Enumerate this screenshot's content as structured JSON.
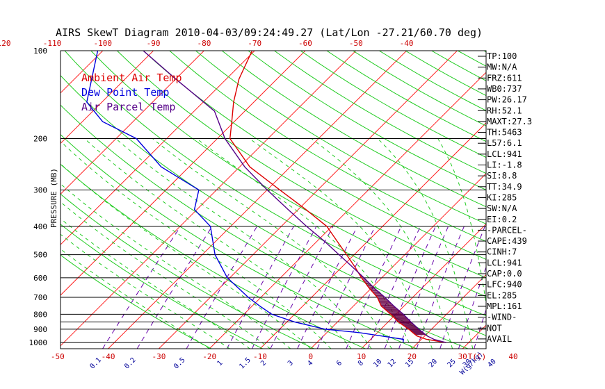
{
  "chart_data": {
    "type": "line",
    "title": "AIRS SkewT Diagram 2010-04-03/09:24:49.27 (Lat/Lon -27.21/60.70 deg)",
    "ylabel": "PRESSURE (MB)",
    "xlabel_bottom_unit": "T(C)",
    "mixing_ratio_unit": "W(g/kg)",
    "pressure_ticks": [
      100,
      200,
      300,
      400,
      500,
      600,
      700,
      800,
      900,
      1000
    ],
    "pressure_lines": [
      200,
      300,
      400,
      500,
      600,
      700,
      800,
      850,
      900,
      1000
    ],
    "top_temperature_ticks": [
      -120,
      -110,
      -100,
      -90,
      -80,
      -70,
      -60,
      -50,
      -40
    ],
    "bottom_temperature_ticks": [
      -50,
      -40,
      -30,
      -20,
      -10,
      0,
      10,
      20,
      30,
      40
    ],
    "mixing_ratio_labels": [
      "0.1",
      "0.2",
      "0.5",
      "1",
      "1.5",
      "2",
      "3",
      "4",
      "6",
      "8",
      "10",
      "12",
      "15",
      "20",
      "25",
      "30",
      "40"
    ],
    "legend": [
      {
        "label": "Ambient Air Temp",
        "color": "#dd0000"
      },
      {
        "label": "Dew Point Temp",
        "color": "#0000dd"
      },
      {
        "label": "Air Parcel Temp",
        "color": "#550088"
      }
    ],
    "series": [
      {
        "name": "Ambient Air Temp",
        "color": "#dd0000",
        "points": [
          [
            1000,
            25.5
          ],
          [
            975,
            21.0
          ],
          [
            950,
            18.5
          ],
          [
            925,
            17.0
          ],
          [
            900,
            15.5
          ],
          [
            850,
            12.0
          ],
          [
            800,
            9.0
          ],
          [
            750,
            5.5
          ],
          [
            700,
            3.0
          ],
          [
            650,
            -0.5
          ],
          [
            600,
            -4.0
          ],
          [
            550,
            -7.5
          ],
          [
            500,
            -11.5
          ],
          [
            450,
            -16.0
          ],
          [
            400,
            -21.0
          ],
          [
            350,
            -28.5
          ],
          [
            300,
            -37.5
          ],
          [
            250,
            -48.0
          ],
          [
            200,
            -57.5
          ],
          [
            175,
            -60.5
          ],
          [
            150,
            -64.0
          ],
          [
            125,
            -67.5
          ],
          [
            100,
            -70.5
          ]
        ]
      },
      {
        "name": "Dew Point Temp",
        "color": "#0000dd",
        "points": [
          [
            1000,
            17.0
          ],
          [
            975,
            16.5
          ],
          [
            950,
            11.5
          ],
          [
            925,
            6.5
          ],
          [
            900,
            -1.0
          ],
          [
            850,
            -8.5
          ],
          [
            800,
            -14.5
          ],
          [
            750,
            -18.5
          ],
          [
            700,
            -22.5
          ],
          [
            600,
            -30.5
          ],
          [
            500,
            -37.5
          ],
          [
            400,
            -44.0
          ],
          [
            350,
            -50.5
          ],
          [
            300,
            -53.5
          ],
          [
            250,
            -65.5
          ],
          [
            200,
            -76.0
          ],
          [
            175,
            -86.0
          ],
          [
            150,
            -93.0
          ],
          [
            100,
            -101.0
          ]
        ]
      },
      {
        "name": "Air Parcel Temp",
        "color": "#550088",
        "points": [
          [
            1000,
            25.5
          ],
          [
            975,
            22.5
          ],
          [
            950,
            20.5
          ],
          [
            941,
            20.0
          ],
          [
            900,
            17.5
          ],
          [
            850,
            14.5
          ],
          [
            800,
            11.5
          ],
          [
            750,
            8.0
          ],
          [
            700,
            4.5
          ],
          [
            650,
            0.5
          ],
          [
            600,
            -3.5
          ],
          [
            550,
            -8.0
          ],
          [
            500,
            -13.0
          ],
          [
            450,
            -18.5
          ],
          [
            400,
            -25.0
          ],
          [
            350,
            -32.0
          ],
          [
            300,
            -40.0
          ],
          [
            250,
            -49.0
          ],
          [
            200,
            -58.5
          ],
          [
            161,
            -66.0
          ],
          [
            125,
            -80.0
          ],
          [
            100,
            -92.0
          ]
        ]
      }
    ],
    "indices": [
      {
        "label": "TP",
        "value": "100"
      },
      {
        "label": "MW",
        "value": "N/A"
      },
      {
        "label": "FRZ",
        "value": "611"
      },
      {
        "label": "WB0",
        "value": "737"
      },
      {
        "label": "PW",
        "value": "26.17"
      },
      {
        "label": "RH",
        "value": "52.1"
      },
      {
        "label": "MAXT",
        "value": "27.3"
      },
      {
        "label": "TH",
        "value": "5463"
      },
      {
        "label": "L57",
        "value": "6.1"
      },
      {
        "label": "LCL",
        "value": "941"
      },
      {
        "label": "LI",
        "value": "-1.8"
      },
      {
        "label": "SI",
        "value": "8.8"
      },
      {
        "label": "TT",
        "value": "34.9"
      },
      {
        "label": "KI",
        "value": "285"
      },
      {
        "label": "SW",
        "value": "N/A"
      },
      {
        "label": "EI",
        "value": "0.2"
      },
      {
        "label": "",
        "value": "-PARCEL-"
      },
      {
        "label": "CAPE",
        "value": "439"
      },
      {
        "label": "CINH",
        "value": "7"
      },
      {
        "label": "LCL",
        "value": "941"
      },
      {
        "label": "CAP",
        "value": "0.0"
      },
      {
        "label": "LFC",
        "value": "940"
      },
      {
        "label": "EL",
        "value": "285"
      },
      {
        "label": "MPL",
        "value": "161"
      },
      {
        "label": "",
        "value": "-WIND-"
      },
      {
        "label": "",
        "value": "NOT"
      },
      {
        "label": "",
        "value": "AVAIL"
      }
    ]
  }
}
